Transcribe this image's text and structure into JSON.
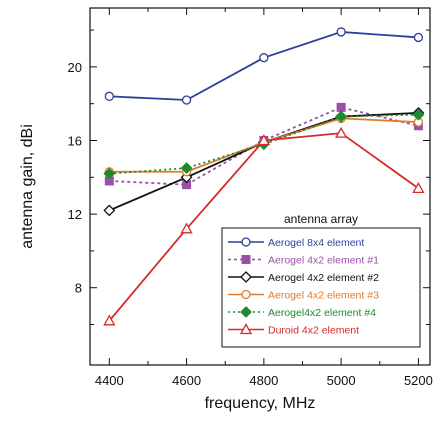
{
  "chart_data": {
    "type": "line",
    "xlabel": "frequency, MHz",
    "ylabel": "antenna gain, dBi",
    "xlim": [
      4350,
      5230
    ],
    "ylim": [
      3.8,
      23.2
    ],
    "x": [
      4400,
      4600,
      4800,
      5000,
      5200
    ],
    "x_ticks": [
      "4400",
      "4600",
      "4800",
      "5000",
      "5200"
    ],
    "y_ticks": [
      "8",
      "12",
      "16",
      "20"
    ],
    "y_tick_values": [
      8,
      12,
      16,
      20
    ],
    "grid": false,
    "legend": {
      "title": "antenna array",
      "placement": "bottom-right"
    },
    "series": [
      {
        "name": "Aerogel 8x4 element",
        "values": [
          18.4,
          18.2,
          20.5,
          21.9,
          21.6
        ],
        "color": "#2e3f9a",
        "marker": "circle-open",
        "dash": ""
      },
      {
        "name": "Aerogel 4x2 element #1",
        "values": [
          13.8,
          13.6,
          16.0,
          17.8,
          16.8
        ],
        "color": "#9b4fa8",
        "marker": "square",
        "dash": "3,3"
      },
      {
        "name": "Aerogel 4x2 element #2",
        "values": [
          12.2,
          14.0,
          15.9,
          17.3,
          17.5
        ],
        "color": "#111111",
        "marker": "diamond-open",
        "dash": ""
      },
      {
        "name": "Aerogel 4x2 element #3",
        "values": [
          14.3,
          14.3,
          15.9,
          17.2,
          17.0
        ],
        "color": "#e07b2a",
        "marker": "circle-open",
        "dash": ""
      },
      {
        "name": "Aerogel4x2 element #4",
        "values": [
          14.2,
          14.5,
          15.8,
          17.3,
          17.4
        ],
        "color": "#1e8a2e",
        "marker": "diamond",
        "dash": "2,3"
      },
      {
        "name": "Duroid 4x2 element",
        "values": [
          6.2,
          11.2,
          16.0,
          16.4,
          13.4
        ],
        "color": "#d42a2a",
        "marker": "triangle-open",
        "dash": ""
      }
    ]
  }
}
